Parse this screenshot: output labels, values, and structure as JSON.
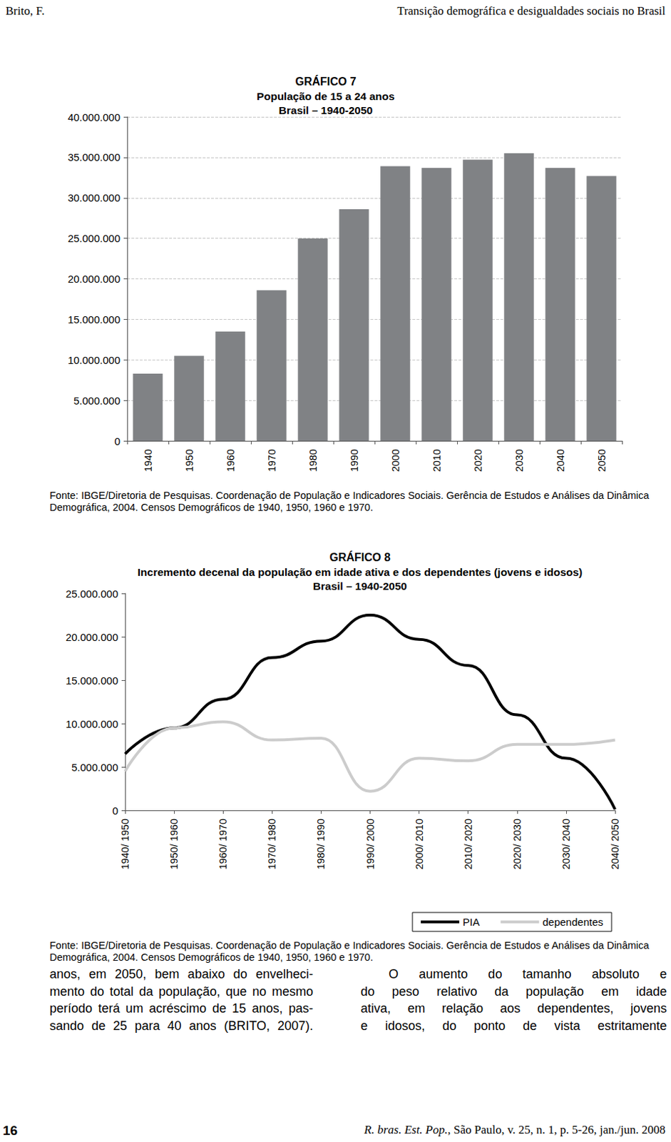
{
  "page": {
    "header_left": "Brito, F.",
    "header_right": "Transição demográfica e desigualdades sociais no Brasil",
    "body_left": [
      "anos, em 2050, bem abaixo do envelheci-",
      "mento do total da população, que no mesmo",
      "período terá um acréscimo de 15 anos, pas-",
      "sando de 25 para 40 anos (BRITO, 2007)."
    ],
    "body_right": [
      "O aumento do tamanho absoluto e",
      "do peso relativo da população em idade",
      "ativa, em relação aos dependentes, jovens",
      "e idosos, do ponto de vista estritamente"
    ],
    "footer_page": "16",
    "footer_journal": "R. bras. Est. Pop.",
    "footer_ref": ", São Paulo, v. 25, n. 1, p. 5-26, jan./jun. 2008"
  },
  "chart_data": [
    {
      "type": "bar",
      "title": "GRÁFICO 7",
      "subtitle": "População de 15 a 24 anos\nBrasil – 1940-2050",
      "categories": [
        "1940",
        "1950",
        "1960",
        "1970",
        "1980",
        "1990",
        "2000",
        "2010",
        "2020",
        "2030",
        "2040",
        "2050"
      ],
      "values": [
        8300000,
        10500000,
        13500000,
        18600000,
        25000000,
        28600000,
        33900000,
        33700000,
        34700000,
        35500000,
        33700000,
        32700000
      ],
      "color": "#808285",
      "ylim": [
        0,
        40000000
      ],
      "yticks": [
        0,
        {
          "value": 5000000,
          "label": "5.000.000"
        },
        {
          "value": 10000000,
          "label": "10.000.000"
        },
        {
          "value": 15000000,
          "label": "15.000.000"
        },
        {
          "value": 20000000,
          "label": "20.000.000"
        },
        {
          "value": 25000000,
          "label": "25.000.000"
        },
        {
          "value": 30000000,
          "label": "30.000.000"
        },
        {
          "value": 35000000,
          "label": "35.000.000"
        },
        {
          "value": 40000000,
          "label": "40.000.000"
        }
      ],
      "grid": true,
      "source": "Fonte: IBGE/Diretoria de Pesquisas. Coordenação de População e Indicadores Sociais. Gerência de Estudos e Análises da Dinâmica Demográfica, 2004. Censos Demográficos de 1940, 1950, 1960 e 1970."
    },
    {
      "type": "line",
      "title": "GRÁFICO 8",
      "subtitle": "Incremento decenal da população em idade ativa e dos dependentes (jovens e idosos)\nBrasil – 1940-2050",
      "categories": [
        "1940/ 1950",
        "1950/ 1960",
        "1960/ 1970",
        "1970/ 1980",
        "1980/ 1990",
        "1990/ 2000",
        "2000/ 2010",
        "2010/ 2020",
        "2020/ 2030",
        "2030/ 2040",
        "2040/ 2050"
      ],
      "series": [
        {
          "name": "PIA",
          "color": "#000000",
          "values": [
            6500000,
            9500000,
            12800000,
            17600000,
            19500000,
            22500000,
            19700000,
            16700000,
            11000000,
            6000000,
            100000
          ]
        },
        {
          "name": "dependentes",
          "color": "#cccccc",
          "values": [
            4500000,
            9500000,
            10200000,
            8100000,
            8300000,
            2200000,
            6000000,
            5700000,
            7600000,
            7600000,
            8100000
          ]
        }
      ],
      "ylim": [
        0,
        25000000
      ],
      "yticks": [
        0,
        {
          "value": 5000000,
          "label": "5.000.000"
        },
        {
          "value": 10000000,
          "label": "10.000.000"
        },
        {
          "value": 15000000,
          "label": "15.000.000"
        },
        {
          "value": 20000000,
          "label": "20.000.000"
        },
        {
          "value": 25000000,
          "label": "25.000.000"
        }
      ],
      "grid": false,
      "legend": "lower right",
      "source": "Fonte: IBGE/Diretoria de Pesquisas. Coordenação de População e Indicadores Sociais. Gerência de Estudos e Análises da Dinâmica Demográfica, 2004. Censos Demográficos de 1940, 1950, 1960 e 1970."
    }
  ]
}
